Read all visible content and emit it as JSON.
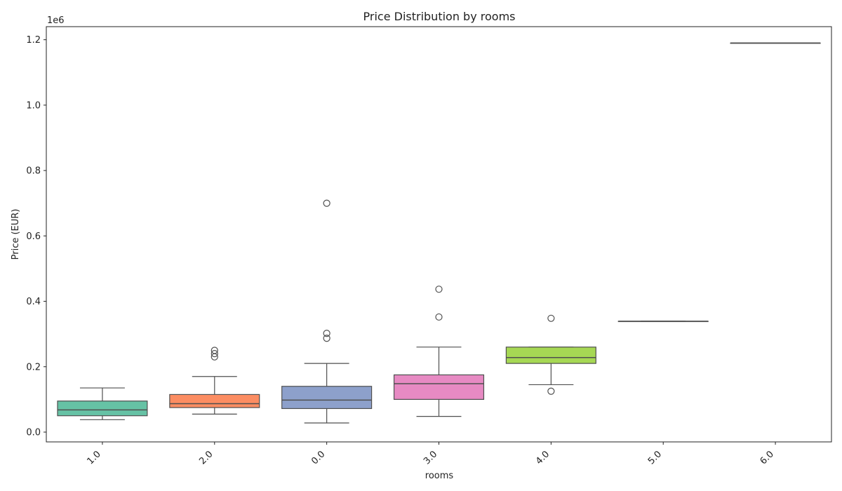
{
  "chart_data": {
    "type": "box",
    "title": "Price Distribution by rooms",
    "xlabel": "rooms",
    "ylabel": "Price (EUR)",
    "y_offset_text": "1e6",
    "ylim": [
      -30000,
      1240000
    ],
    "y_ticks": [
      0,
      200000,
      400000,
      600000,
      800000,
      1000000,
      1200000
    ],
    "y_tick_labels": [
      "0.0",
      "0.2",
      "0.4",
      "0.6",
      "0.8",
      "1.0",
      "1.2"
    ],
    "categories": [
      "1.0",
      "2.0",
      "0.0",
      "3.0",
      "4.0",
      "5.0",
      "6.0"
    ],
    "boxes": [
      {
        "category": "1.0",
        "whisker_low": 38000,
        "q1": 50000,
        "median": 68000,
        "q3": 95000,
        "whisker_high": 135000,
        "outliers": [],
        "color": "#66c2a5"
      },
      {
        "category": "2.0",
        "whisker_low": 55000,
        "q1": 75000,
        "median": 87000,
        "q3": 115000,
        "whisker_high": 170000,
        "outliers": [
          230000,
          240000,
          250000
        ],
        "color": "#fc8d62"
      },
      {
        "category": "0.0",
        "whisker_low": 28000,
        "q1": 72000,
        "median": 98000,
        "q3": 140000,
        "whisker_high": 210000,
        "outliers": [
          287000,
          302000,
          700000
        ],
        "color": "#8da0cb"
      },
      {
        "category": "3.0",
        "whisker_low": 48000,
        "q1": 100000,
        "median": 148000,
        "q3": 175000,
        "whisker_high": 260000,
        "outliers": [
          352000,
          437000
        ],
        "color": "#e78ac3"
      },
      {
        "category": "4.0",
        "whisker_low": 145000,
        "q1": 210000,
        "median": 228000,
        "q3": 260000,
        "whisker_high": 260000,
        "outliers": [
          125000,
          348000
        ],
        "color": "#a6d854"
      },
      {
        "category": "5.0",
        "whisker_low": 339000,
        "q1": 339000,
        "median": 339000,
        "q3": 339000,
        "whisker_high": 339000,
        "outliers": [],
        "color": "#ffd92f"
      },
      {
        "category": "6.0",
        "whisker_low": 1190000,
        "q1": 1190000,
        "median": 1190000,
        "q3": 1190000,
        "whisker_high": 1190000,
        "outliers": [],
        "color": "#e5c494"
      }
    ],
    "grid": false,
    "legend": "none"
  }
}
